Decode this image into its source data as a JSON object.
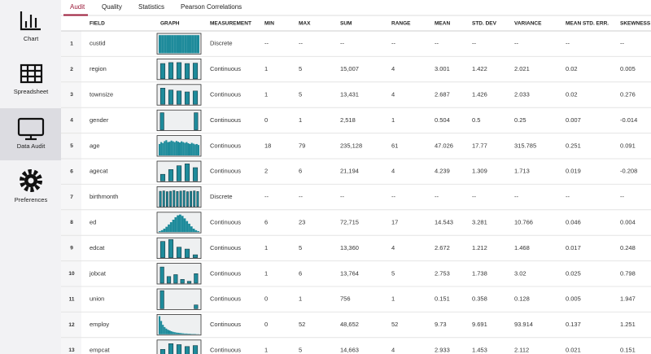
{
  "sidebar": {
    "items": [
      "Chart",
      "Spreadsheet",
      "Data Audit",
      "Preferences"
    ]
  },
  "tabs": [
    "Audit",
    "Quality",
    "Statistics",
    "Pearson Correlations"
  ],
  "table": {
    "columns": [
      "FIELD",
      "GRAPH",
      "MEASUREMENT",
      "MIN",
      "MAX",
      "SUM",
      "RANGE",
      "MEAN",
      "STD. DEV",
      "VARIANCE",
      "MEAN STD. ERR.",
      "SKEWNESS"
    ],
    "rows": [
      [
        "1",
        "custid",
        "Discrete",
        "--",
        "--",
        "--",
        "--",
        "--",
        "--",
        "--",
        "--",
        "--"
      ],
      [
        "2",
        "region",
        "Continuous",
        "1",
        "5",
        "15,007",
        "4",
        "3.001",
        "1.422",
        "2.021",
        "0.02",
        "0.005"
      ],
      [
        "3",
        "townsize",
        "Continuous",
        "1",
        "5",
        "13,431",
        "4",
        "2.687",
        "1.426",
        "2.033",
        "0.02",
        "0.276"
      ],
      [
        "4",
        "gender",
        "Continuous",
        "0",
        "1",
        "2,518",
        "1",
        "0.504",
        "0.5",
        "0.25",
        "0.007",
        "-0.014"
      ],
      [
        "5",
        "age",
        "Continuous",
        "18",
        "79",
        "235,128",
        "61",
        "47.026",
        "17.77",
        "315.785",
        "0.251",
        "0.091"
      ],
      [
        "6",
        "agecat",
        "Continuous",
        "2",
        "6",
        "21,194",
        "4",
        "4.239",
        "1.309",
        "1.713",
        "0.019",
        "-0.208"
      ],
      [
        "7",
        "birthmonth",
        "Discrete",
        "--",
        "--",
        "--",
        "--",
        "--",
        "--",
        "--",
        "--",
        "--"
      ],
      [
        "8",
        "ed",
        "Continuous",
        "6",
        "23",
        "72,715",
        "17",
        "14.543",
        "3.281",
        "10.766",
        "0.046",
        "0.004"
      ],
      [
        "9",
        "edcat",
        "Continuous",
        "1",
        "5",
        "13,360",
        "4",
        "2.672",
        "1.212",
        "1.468",
        "0.017",
        "0.248"
      ],
      [
        "10",
        "jobcat",
        "Continuous",
        "1",
        "6",
        "13,764",
        "5",
        "2.753",
        "1.738",
        "3.02",
        "0.025",
        "0.798"
      ],
      [
        "11",
        "union",
        "Continuous",
        "0",
        "1",
        "756",
        "1",
        "0.151",
        "0.358",
        "0.128",
        "0.005",
        "1.947"
      ],
      [
        "12",
        "employ",
        "Continuous",
        "0",
        "52",
        "48,652",
        "52",
        "9.73",
        "9.691",
        "93.914",
        "0.137",
        "1.251"
      ],
      [
        "13",
        "empcat",
        "Continuous",
        "1",
        "5",
        "14,663",
        "4",
        "2.933",
        "1.453",
        "2.112",
        "0.021",
        "0.151"
      ]
    ],
    "graphs": [
      [
        95,
        95,
        95,
        95,
        95,
        95,
        95,
        95,
        95,
        95,
        95,
        95,
        95,
        95,
        95,
        95
      ],
      [
        80,
        85,
        85,
        80,
        82
      ],
      [
        85,
        75,
        70,
        65,
        70
      ],
      [
        90,
        0,
        0,
        0,
        0,
        90
      ],
      [
        60,
        70,
        65,
        75,
        80,
        70,
        72,
        78,
        74,
        70,
        76,
        72,
        68,
        74,
        70,
        66,
        70,
        64,
        60,
        66,
        62,
        58,
        60,
        55
      ],
      [
        35,
        60,
        80,
        90,
        70
      ],
      [
        80,
        82,
        78,
        80,
        84,
        79,
        81,
        83,
        78,
        80,
        82,
        79
      ],
      [
        5,
        10,
        18,
        28,
        40,
        52,
        65,
        78,
        88,
        92,
        85,
        72,
        58,
        44,
        30,
        18,
        10,
        5
      ],
      [
        85,
        95,
        55,
        45,
        15
      ],
      [
        85,
        35,
        45,
        20,
        10,
        50
      ],
      [
        95,
        0,
        0,
        0,
        0,
        20
      ],
      [
        95,
        70,
        50,
        38,
        30,
        24,
        20,
        16,
        13,
        11,
        9,
        8,
        7,
        6,
        5,
        4,
        4,
        3,
        3,
        2,
        2,
        2,
        1,
        1
      ],
      [
        55,
        85,
        80,
        70,
        75
      ]
    ]
  }
}
